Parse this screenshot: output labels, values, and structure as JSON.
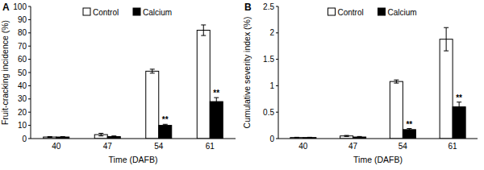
{
  "chart_data": [
    {
      "type": "bar",
      "title": "A",
      "x_label": "Time (DAFB)",
      "y_label": "Fruit-cracking incidence (%)",
      "categories": [
        "40",
        "47",
        "54",
        "61"
      ],
      "series": [
        {
          "name": "Control",
          "color": "#ffffff",
          "values": [
            1.2,
            3.0,
            51.0,
            82.0
          ],
          "errors": [
            0.3,
            1.0,
            1.5,
            4.0
          ]
        },
        {
          "name": "Calcium",
          "color": "#000000",
          "values": [
            1.2,
            1.5,
            10.0,
            28.0
          ],
          "errors": [
            0.3,
            0.5,
            0.8,
            3.0
          ]
        }
      ],
      "ylim": [
        0,
        100
      ],
      "yticks": [
        0,
        10,
        20,
        30,
        40,
        50,
        60,
        70,
        80,
        90,
        100
      ],
      "grid": false,
      "legend": "top",
      "annotations": [
        {
          "text": "**",
          "x": "54",
          "series": "Calcium"
        },
        {
          "text": "**",
          "x": "61",
          "series": "Calcium"
        }
      ]
    },
    {
      "type": "bar",
      "title": "B",
      "x_label": "Time (DAFB)",
      "y_label": "Cumulative severity index (%)",
      "categories": [
        "40",
        "47",
        "54",
        "61"
      ],
      "series": [
        {
          "name": "Control",
          "color": "#ffffff",
          "values": [
            0.02,
            0.05,
            1.08,
            1.88
          ],
          "errors": [
            0.005,
            0.01,
            0.03,
            0.22
          ]
        },
        {
          "name": "Calcium",
          "color": "#000000",
          "values": [
            0.02,
            0.03,
            0.17,
            0.6
          ],
          "errors": [
            0.005,
            0.01,
            0.02,
            0.09
          ]
        }
      ],
      "ylim": [
        0,
        2.5
      ],
      "yticks": [
        0,
        0.5,
        1,
        1.5,
        2,
        2.5
      ],
      "grid": false,
      "legend": "top",
      "annotations": [
        {
          "text": "**",
          "x": "54",
          "series": "Calcium"
        },
        {
          "text": "**",
          "x": "61",
          "series": "Calcium"
        }
      ]
    }
  ]
}
